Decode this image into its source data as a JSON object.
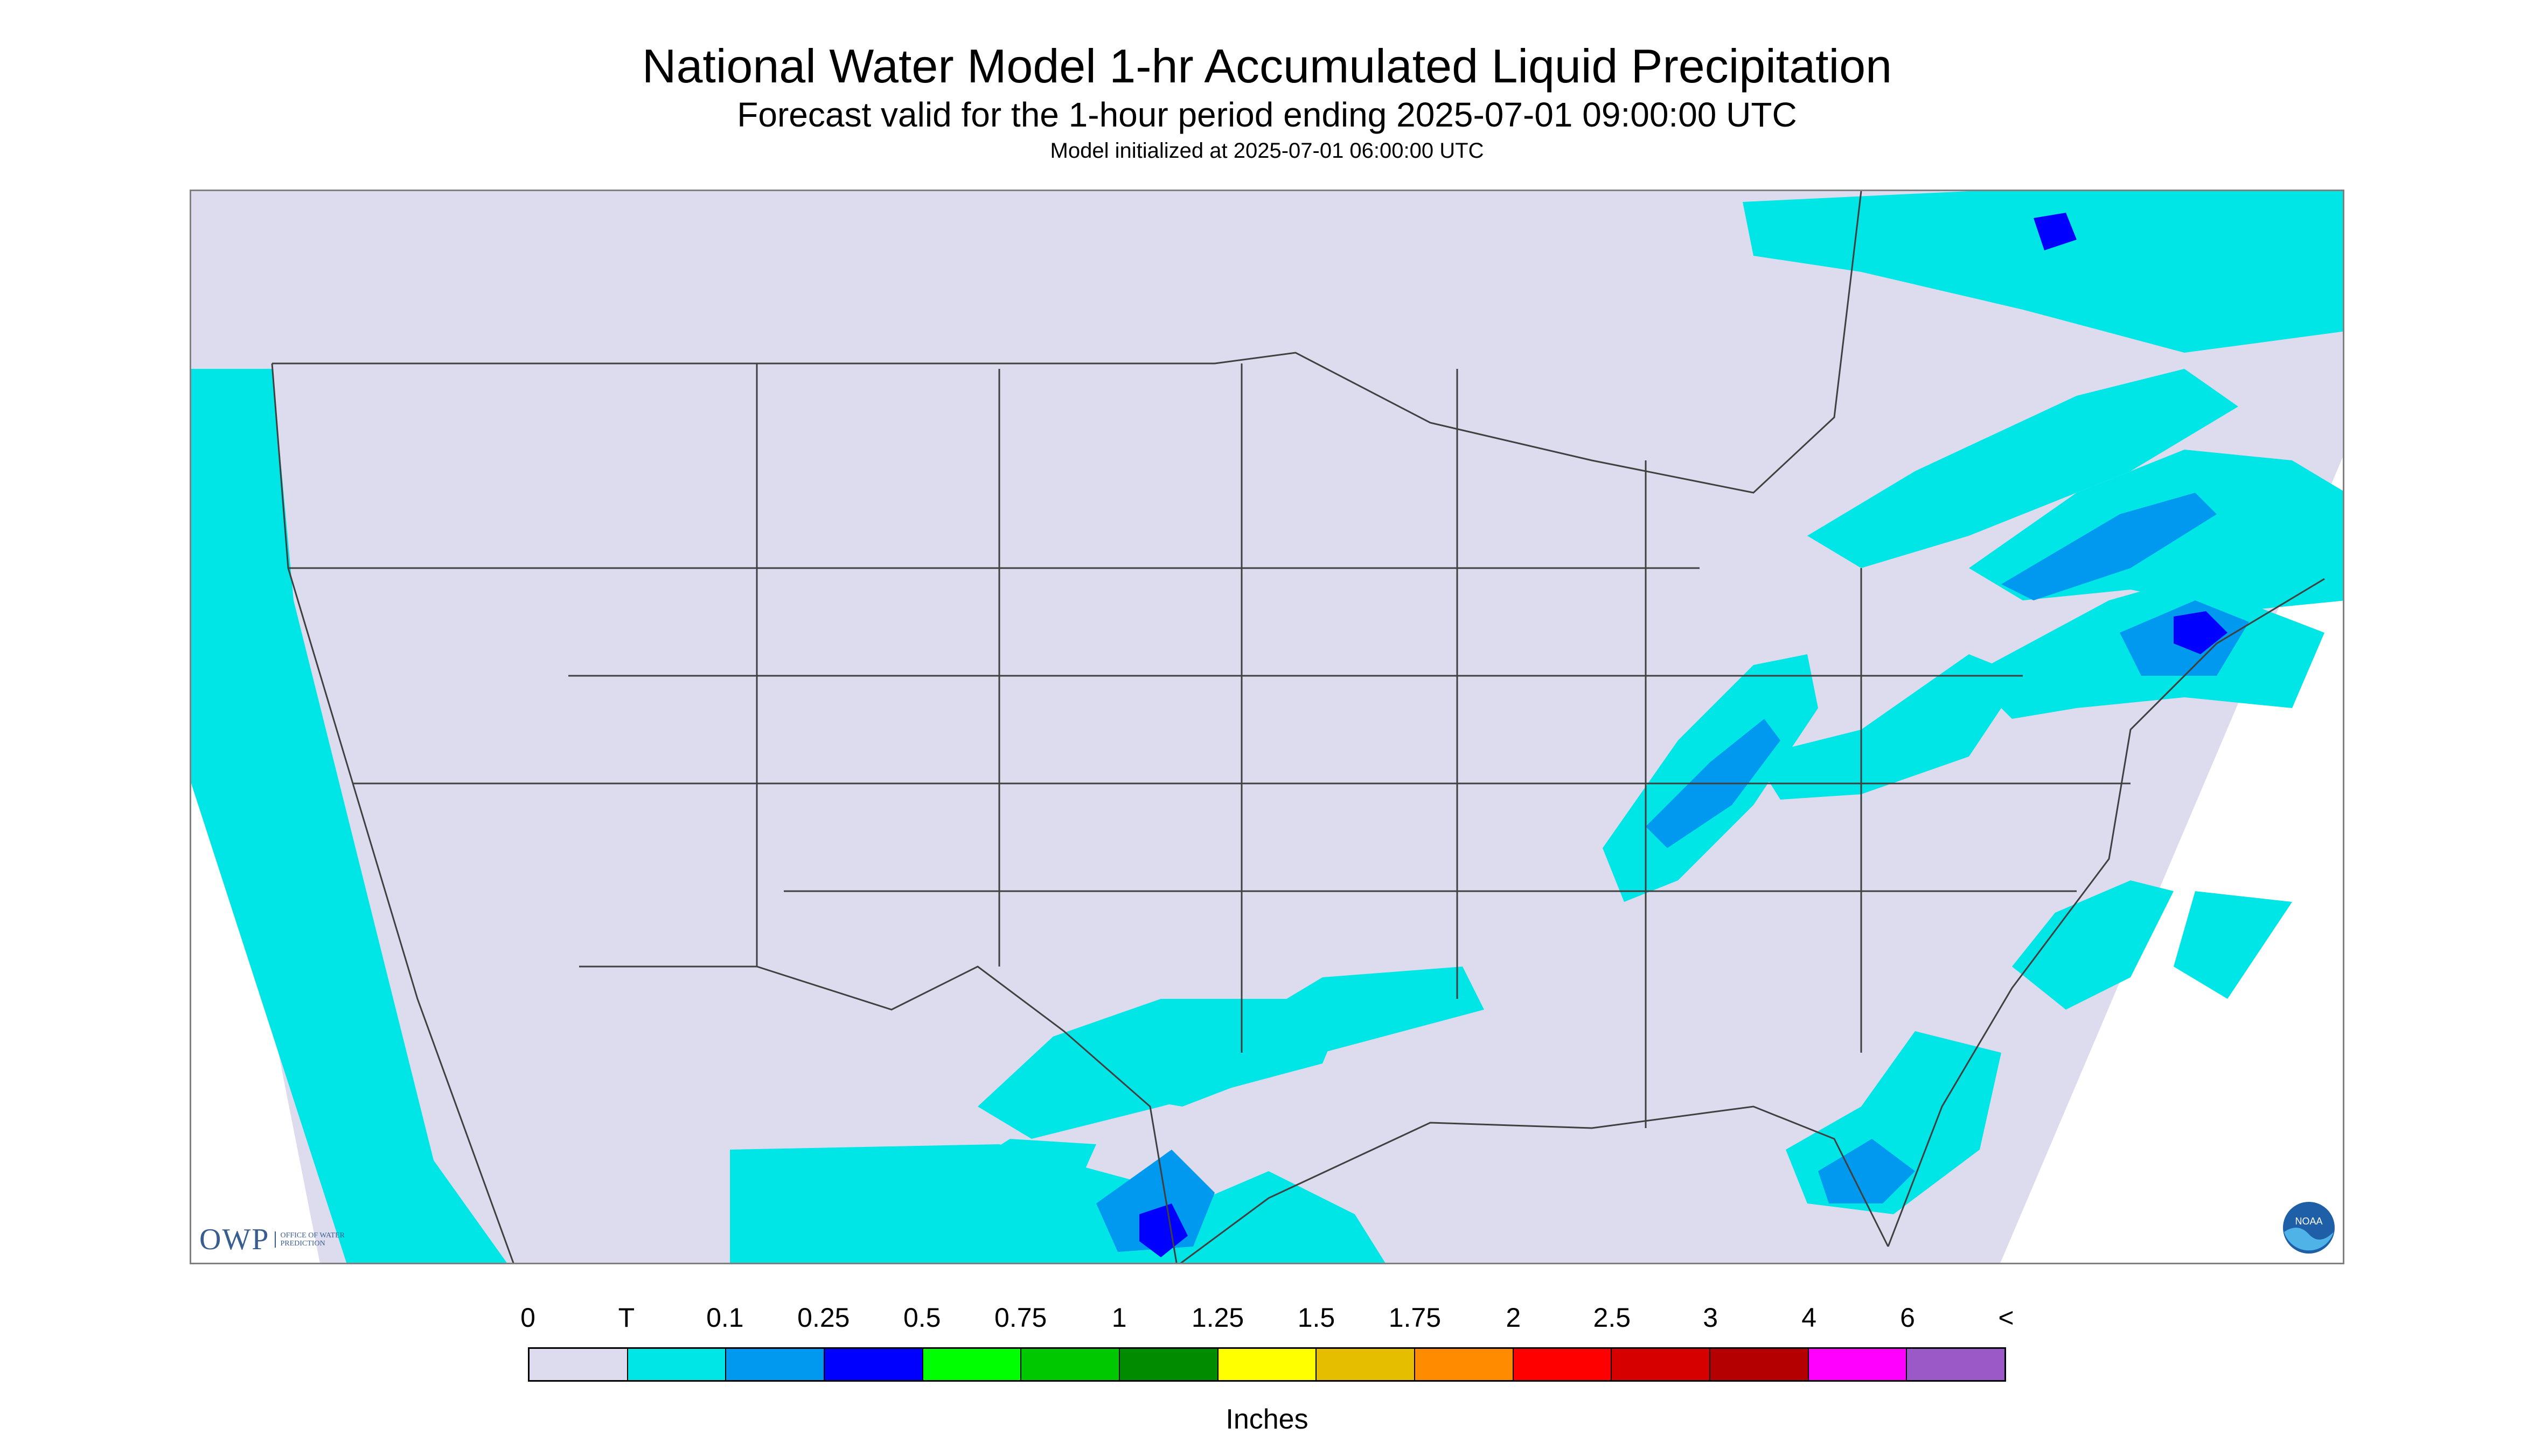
{
  "title": "National Water Model 1-hr Accumulated Liquid Precipitation",
  "subtitle": "Forecast valid for the 1-hour period ending 2025-07-01 09:00:00 UTC",
  "init_line": "Model initialized at 2025-07-01 06:00:00 UTC",
  "map": {
    "region": "Contiguous United States",
    "background_color": "#dcdcee",
    "ocean_outside_color": "#ffffff",
    "border_color": "#404040"
  },
  "logos": {
    "owp_mark": "OWP",
    "owp_text": "OFFICE OF WATER PREDICTION",
    "noaa_text": "NOAA"
  },
  "legend": {
    "labels": [
      "0",
      "T",
      "0.1",
      "0.25",
      "0.5",
      "0.75",
      "1",
      "1.25",
      "1.5",
      "1.75",
      "2",
      "2.5",
      "3",
      "4",
      "6",
      "<"
    ],
    "colors": [
      "#dcdcee",
      "#00e5e5",
      "#0099f0",
      "#0000ff",
      "#00ff00",
      "#00c800",
      "#008c00",
      "#ffff00",
      "#e6be00",
      "#ff8c00",
      "#ff0000",
      "#d60000",
      "#b40000",
      "#ff00ff",
      "#9b59c8"
    ],
    "units": "Inches"
  }
}
